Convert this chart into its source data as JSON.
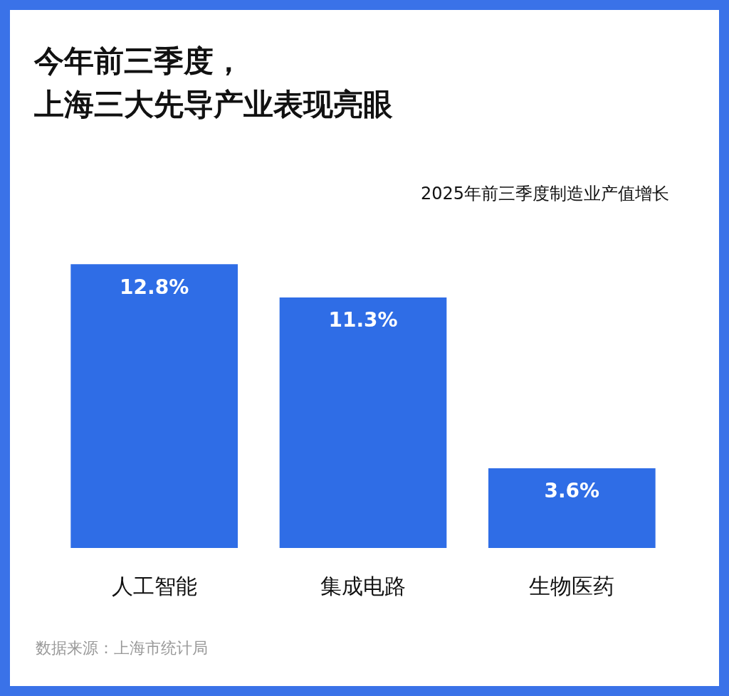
{
  "chart_data": {
    "type": "bar",
    "title": "今年前三季度，上海三大先导产业表现亮眼",
    "subtitle": "2025年前三季度制造业产值增长",
    "categories": [
      "人工智能",
      "集成电路",
      "生物医药"
    ],
    "values": [
      12.8,
      11.3,
      3.6
    ],
    "color": "#2f6de6",
    "value_labels": [
      "12.8%",
      "11.3%",
      "3.6%"
    ],
    "annotations": [
      "数据来源：上海市统计局"
    ]
  }
}
